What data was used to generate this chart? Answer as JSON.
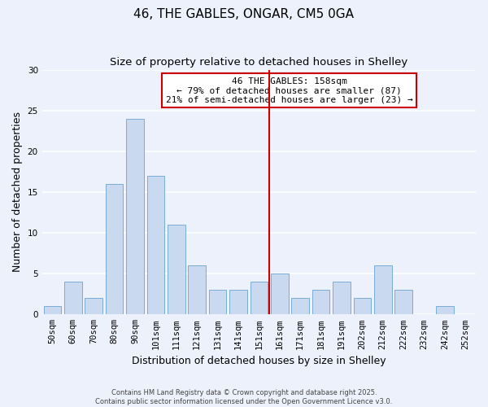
{
  "title": "46, THE GABLES, ONGAR, CM5 0GA",
  "subtitle": "Size of property relative to detached houses in Shelley",
  "xlabel": "Distribution of detached houses by size in Shelley",
  "ylabel": "Number of detached properties",
  "categories": [
    "50sqm",
    "60sqm",
    "70sqm",
    "80sqm",
    "90sqm",
    "101sqm",
    "111sqm",
    "121sqm",
    "131sqm",
    "141sqm",
    "151sqm",
    "161sqm",
    "171sqm",
    "181sqm",
    "191sqm",
    "202sqm",
    "212sqm",
    "222sqm",
    "232sqm",
    "242sqm",
    "252sqm"
  ],
  "values": [
    1,
    4,
    2,
    16,
    24,
    17,
    11,
    6,
    3,
    3,
    4,
    5,
    2,
    3,
    4,
    2,
    6,
    3,
    0,
    1,
    0
  ],
  "bar_color": "#c8d9f0",
  "bar_edge_color": "#7aadd4",
  "vline_index": 11,
  "vline_color": "#cc0000",
  "annotation_title": "46 THE GABLES: 158sqm",
  "annotation_line1": "← 79% of detached houses are smaller (87)",
  "annotation_line2": "21% of semi-detached houses are larger (23) →",
  "annotation_edge_color": "#cc0000",
  "ylim": [
    0,
    30
  ],
  "yticks": [
    0,
    5,
    10,
    15,
    20,
    25,
    30
  ],
  "footnote1": "Contains HM Land Registry data © Crown copyright and database right 2025.",
  "footnote2": "Contains public sector information licensed under the Open Government Licence v3.0.",
  "background_color": "#edf1fb",
  "grid_color": "#ffffff",
  "title_fontsize": 11,
  "subtitle_fontsize": 9.5,
  "label_fontsize": 9,
  "tick_fontsize": 7.5,
  "footnote_fontsize": 6,
  "ann_fontsize": 8
}
